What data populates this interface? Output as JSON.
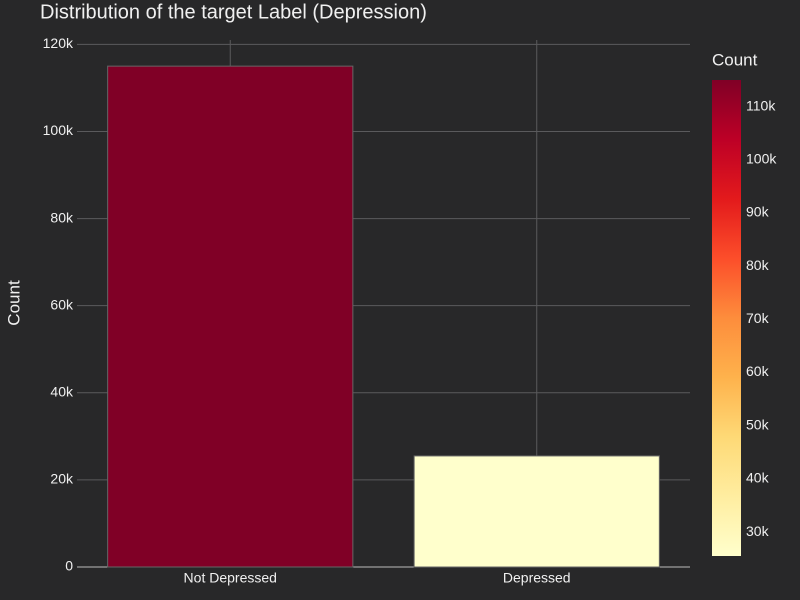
{
  "chart_data": {
    "type": "bar",
    "title": "Distribution of the target Label (Depression)",
    "y_label": "Count",
    "categories": [
      "Not Depressed",
      "Depressed"
    ],
    "values": [
      115000,
      25500
    ],
    "ylim": [
      0,
      121000
    ],
    "yticks": [
      0,
      {
        "value": 20000,
        "label": "20k"
      },
      {
        "value": 40000,
        "label": "40k"
      },
      {
        "value": 60000,
        "label": "60k"
      },
      {
        "value": 80000,
        "label": "80k"
      },
      {
        "value": 100000,
        "label": "100k"
      },
      {
        "value": 120000,
        "label": "120k"
      }
    ],
    "grid": true,
    "colorbar": {
      "title": "Count",
      "colorscale": [
        "#ffffcc",
        "#ffeda0",
        "#fed976",
        "#feb24c",
        "#fd8d3c",
        "#fc4e2a",
        "#e31a1c",
        "#bd0026",
        "#800026"
      ],
      "ticks": [
        {
          "value": 30000,
          "label": "30k"
        },
        {
          "value": 40000,
          "label": "40k"
        },
        {
          "value": 50000,
          "label": "50k"
        },
        {
          "value": 60000,
          "label": "60k"
        },
        {
          "value": 70000,
          "label": "70k"
        },
        {
          "value": 80000,
          "label": "80k"
        },
        {
          "value": 90000,
          "label": "90k"
        },
        {
          "value": 100000,
          "label": "100k"
        },
        {
          "value": 110000,
          "label": "110k"
        }
      ]
    }
  }
}
